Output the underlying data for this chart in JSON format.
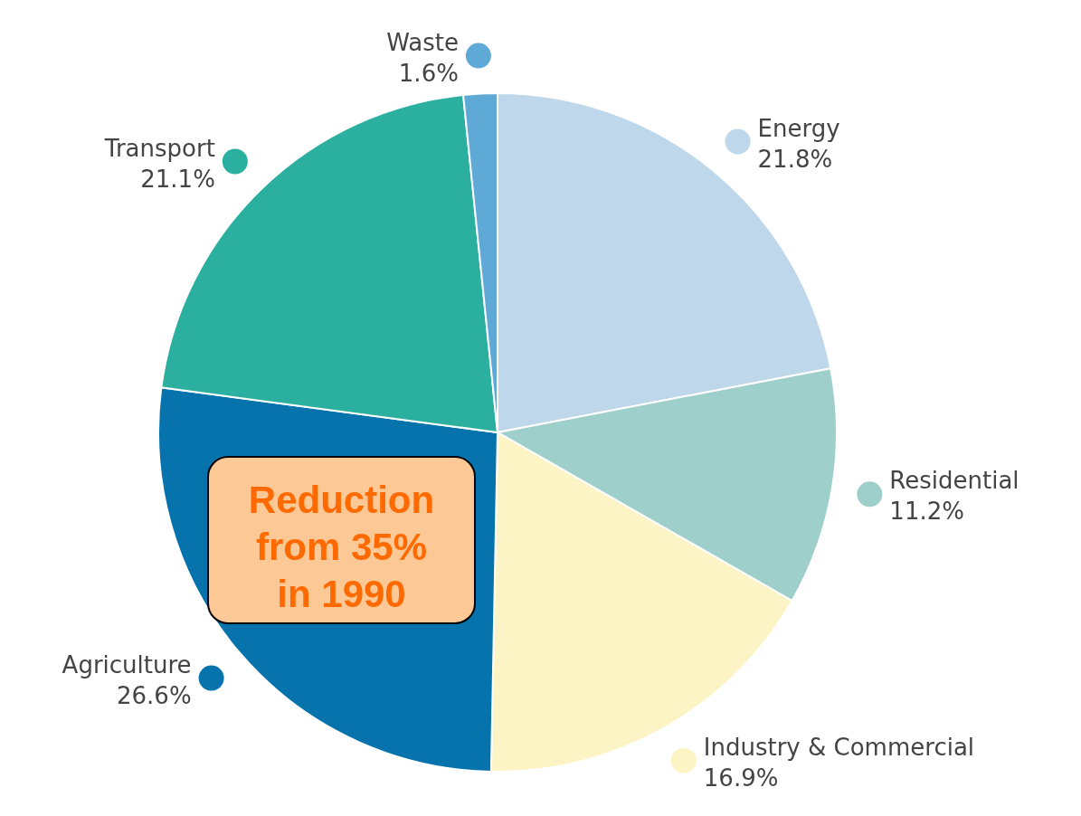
{
  "chart_data": {
    "type": "pie",
    "categories": [
      "Energy",
      "Residential",
      "Industry & Commercial",
      "Agriculture",
      "Transport",
      "Waste"
    ],
    "values": [
      21.8,
      11.2,
      16.9,
      26.6,
      21.1,
      1.6
    ],
    "colors": [
      "#bfd7ea",
      "#9ecfca",
      "#fcf4c4",
      "#0673ad",
      "#2bb0a0",
      "#5ea9d6"
    ],
    "value_labels": [
      "21.8%",
      "11.2%",
      "16.9%",
      "26.6%",
      "21.1%",
      "1.6%"
    ],
    "legend": "right",
    "annotations": [
      "Reduction from 35% in 1990"
    ]
  }
}
